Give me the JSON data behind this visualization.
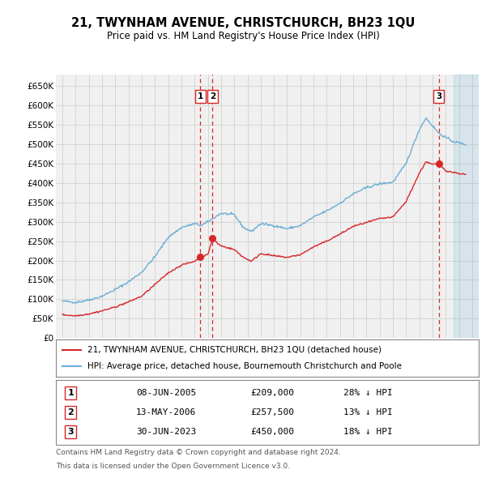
{
  "title": "21, TWYNHAM AVENUE, CHRISTCHURCH, BH23 1QU",
  "subtitle": "Price paid vs. HM Land Registry's House Price Index (HPI)",
  "legend_line1": "21, TWYNHAM AVENUE, CHRISTCHURCH, BH23 1QU (detached house)",
  "legend_line2": "HPI: Average price, detached house, Bournemouth Christchurch and Poole",
  "footer1": "Contains HM Land Registry data © Crown copyright and database right 2024.",
  "footer2": "This data is licensed under the Open Government Licence v3.0.",
  "transactions": [
    {
      "num": 1,
      "date": "08-JUN-2005",
      "price": 209000,
      "pct": "28% ↓ HPI",
      "x": 2005.44
    },
    {
      "num": 2,
      "date": "13-MAY-2006",
      "price": 257500,
      "pct": "13% ↓ HPI",
      "x": 2006.36
    },
    {
      "num": 3,
      "date": "30-JUN-2023",
      "price": 450000,
      "pct": "18% ↓ HPI",
      "x": 2023.49
    }
  ],
  "xlim": [
    1994.5,
    2026.5
  ],
  "ylim": [
    0,
    680000
  ],
  "yticks": [
    0,
    50000,
    100000,
    150000,
    200000,
    250000,
    300000,
    350000,
    400000,
    450000,
    500000,
    550000,
    600000,
    650000
  ],
  "ytick_labels": [
    "£0",
    "£50K",
    "£100K",
    "£150K",
    "£200K",
    "£250K",
    "£300K",
    "£350K",
    "£400K",
    "£450K",
    "£500K",
    "£550K",
    "£600K",
    "£650K"
  ],
  "hpi_color": "#6baed6",
  "price_color": "#d62728",
  "background_color": "#ffffff",
  "plot_bg_color": "#f0f0f0",
  "grid_color": "#cccccc",
  "hpi_keypoints": [
    [
      1995.0,
      95000
    ],
    [
      1996.0,
      92000
    ],
    [
      1997.0,
      98000
    ],
    [
      1998.0,
      108000
    ],
    [
      1999.0,
      125000
    ],
    [
      2000.0,
      145000
    ],
    [
      2001.0,
      170000
    ],
    [
      2002.0,
      210000
    ],
    [
      2003.0,
      260000
    ],
    [
      2004.0,
      285000
    ],
    [
      2005.0,
      295000
    ],
    [
      2005.5,
      290000
    ],
    [
      2006.0,
      300000
    ],
    [
      2007.0,
      322000
    ],
    [
      2008.0,
      318000
    ],
    [
      2008.7,
      285000
    ],
    [
      2009.3,
      275000
    ],
    [
      2010.0,
      295000
    ],
    [
      2011.0,
      290000
    ],
    [
      2012.0,
      282000
    ],
    [
      2013.0,
      290000
    ],
    [
      2014.0,
      312000
    ],
    [
      2015.0,
      328000
    ],
    [
      2016.0,
      348000
    ],
    [
      2017.0,
      372000
    ],
    [
      2018.0,
      388000
    ],
    [
      2019.0,
      398000
    ],
    [
      2020.0,
      402000
    ],
    [
      2021.0,
      450000
    ],
    [
      2022.0,
      538000
    ],
    [
      2022.5,
      568000
    ],
    [
      2023.0,
      548000
    ],
    [
      2023.5,
      528000
    ],
    [
      2024.0,
      518000
    ],
    [
      2024.5,
      508000
    ],
    [
      2025.5,
      500000
    ]
  ],
  "price_keypoints": [
    [
      1995.0,
      60000
    ],
    [
      1996.0,
      57000
    ],
    [
      1997.0,
      62000
    ],
    [
      1998.0,
      70000
    ],
    [
      1999.0,
      80000
    ],
    [
      2000.0,
      93000
    ],
    [
      2001.0,
      108000
    ],
    [
      2002.0,
      138000
    ],
    [
      2003.0,
      168000
    ],
    [
      2004.0,
      188000
    ],
    [
      2005.0,
      198000
    ],
    [
      2005.44,
      209000
    ],
    [
      2006.0,
      215000
    ],
    [
      2006.36,
      257500
    ],
    [
      2006.8,
      242000
    ],
    [
      2007.0,
      238000
    ],
    [
      2008.0,
      228000
    ],
    [
      2008.7,
      208000
    ],
    [
      2009.3,
      198000
    ],
    [
      2010.0,
      218000
    ],
    [
      2011.0,
      212000
    ],
    [
      2012.0,
      208000
    ],
    [
      2013.0,
      215000
    ],
    [
      2014.0,
      235000
    ],
    [
      2015.0,
      250000
    ],
    [
      2016.0,
      268000
    ],
    [
      2017.0,
      288000
    ],
    [
      2018.0,
      298000
    ],
    [
      2019.0,
      308000
    ],
    [
      2020.0,
      312000
    ],
    [
      2021.0,
      352000
    ],
    [
      2022.0,
      425000
    ],
    [
      2022.5,
      455000
    ],
    [
      2023.0,
      448000
    ],
    [
      2023.49,
      450000
    ],
    [
      2024.0,
      432000
    ],
    [
      2024.5,
      428000
    ],
    [
      2025.5,
      422000
    ]
  ],
  "sale_points": [
    [
      2005.44,
      209000
    ],
    [
      2006.36,
      257500
    ],
    [
      2023.49,
      450000
    ]
  ],
  "future_shade_start": 2024.58
}
